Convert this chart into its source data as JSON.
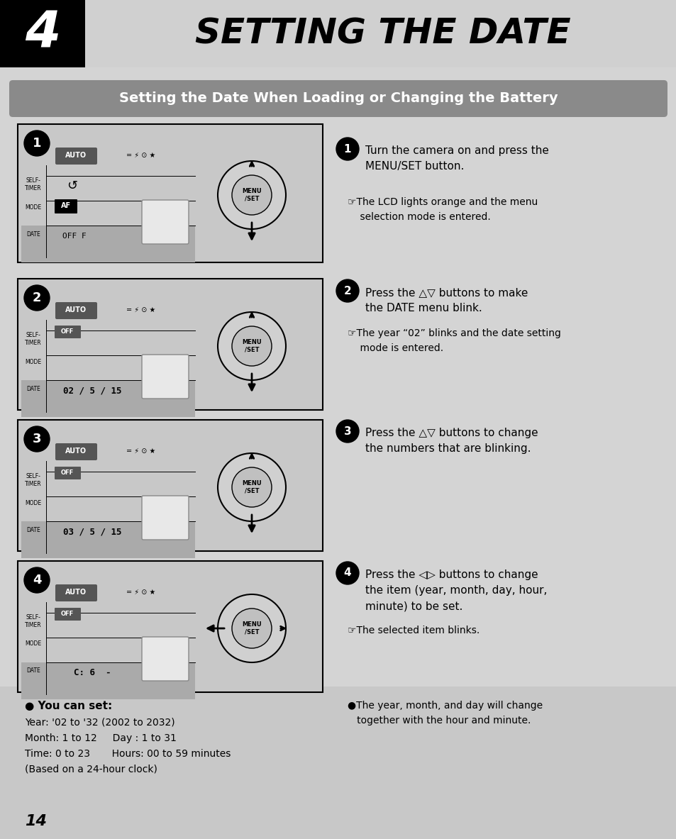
{
  "bg_color": "#d4d4d4",
  "white": "#ffffff",
  "black": "#000000",
  "page_number": "14",
  "title_number": "4",
  "title_text": "SETTING THE DATE",
  "section_title": "Setting the Date When Loading or Changing the Battery",
  "step1_main": "Turn the camera on and press the\nMENU/SET button.",
  "step1_sub": "☞The LCD lights orange and the menu\n    selection mode is entered.",
  "step2_main": "Press the △▽ buttons to make\nthe DATE menu blink.",
  "step2_sub": "☞The year “02” blinks and the date setting\n    mode is entered.",
  "step3_main": "Press the △▽ buttons to change\nthe numbers that are blinking.",
  "step4_main": "Press the ◁▷ buttons to change\nthe item (year, month, day, hour,\nminute) to be set.",
  "step4_sub": "☞The selected item blinks.",
  "footer_bullet1_bold": "● You can set:",
  "footer_line1": "Year: '02 to '32 (2002 to 2032)",
  "footer_line2": "Month: 1 to 12     Day : 1 to 31",
  "footer_line3": "Time: 0 to 23       Hours: 00 to 59 minutes",
  "footer_line4": "(Based on a 24-hour clock)",
  "footer_bullet2": "●The year, month, and day will change\n   together with the hour and minute."
}
